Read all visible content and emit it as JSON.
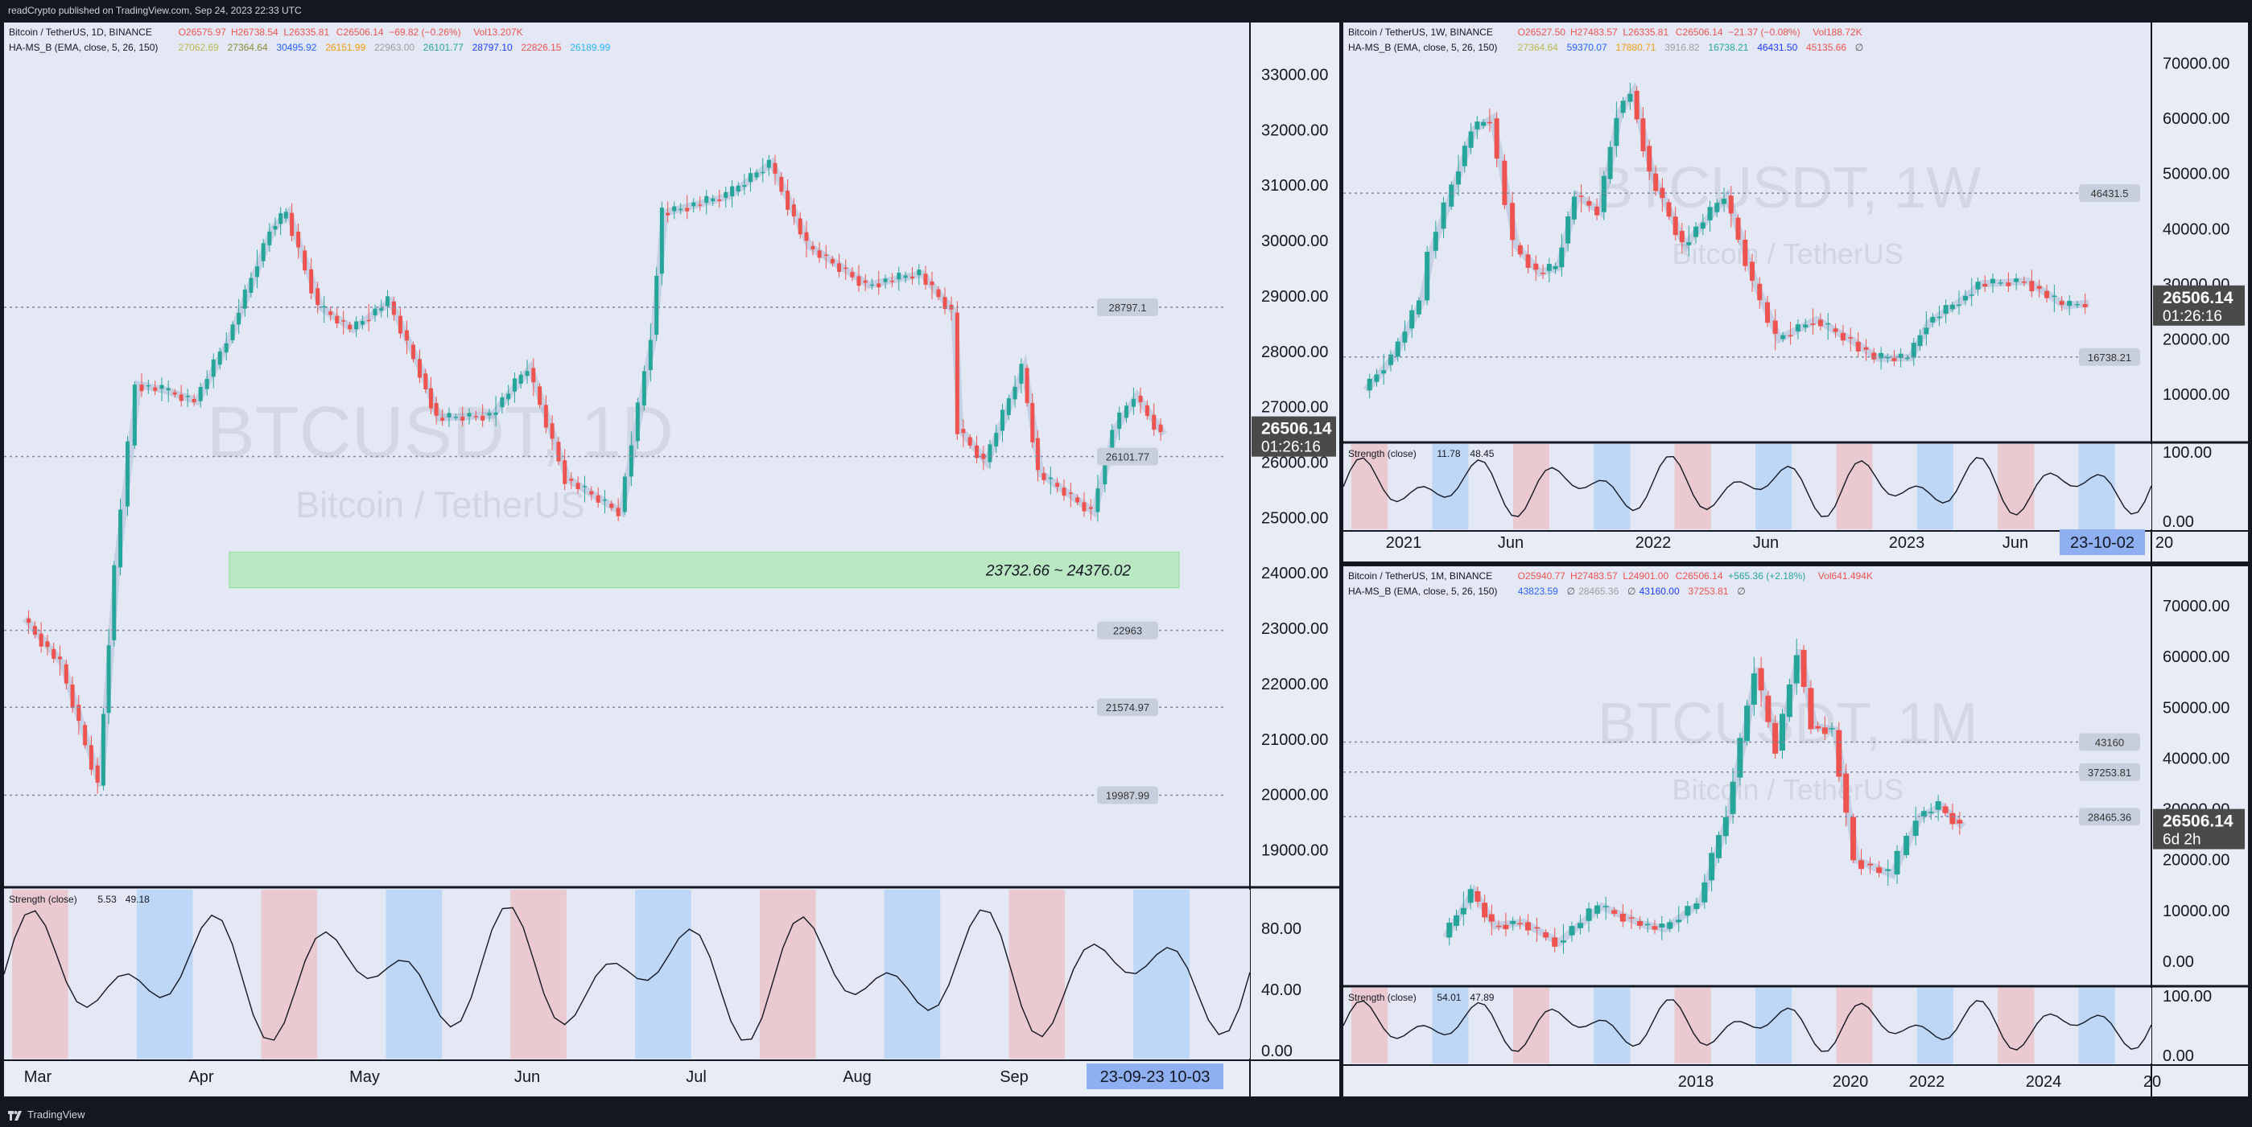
{
  "header": {
    "text": "readCrypto published on TradingView.com, Sep 24, 2023 22:33 UTC"
  },
  "footer": {
    "brand": "TradingView"
  },
  "colors": {
    "background": "#e8ecf6",
    "frame": "#131722",
    "up": "#26a69a",
    "down": "#ef5350",
    "price_tag": "#4a4a4a",
    "lines_blue": "#1e3cff",
    "fast_cloud": "#90c3f9",
    "slow_cloud": "#f2a3a3"
  },
  "chart_data": [
    {
      "type": "candlestick",
      "timeframe": "1D",
      "legend": {
        "title": "Bitcoin / TetherUS, 1D, BINANCE",
        "ohlc": [
          "O26575.97",
          "H26738.54",
          "L26335.81",
          "C26506.14",
          "−69.82 (−0.26%)",
          "Vol13.207K"
        ],
        "indicator": "HA-MS_B (EMA, close, 5, 26, 150)",
        "indicator_values": [
          "27062.69",
          "27364.64",
          "30495.92",
          "26151.99",
          "22963.00",
          "26101.77",
          "28797.10",
          "22826.15",
          "26189.99"
        ],
        "indicator_colors": [
          "#bdb94f",
          "#8b8b3a",
          "#2962ff",
          "#f39c12",
          "#9e9e9e",
          "#26a69a",
          "#1e3cff",
          "#ef5350",
          "#29b6f6"
        ]
      },
      "watermark": {
        "symbol": "BTCUSDT, 1D",
        "name": "Bitcoin / TetherUS"
      },
      "y_ticks": [
        "33000.00",
        "32000.00",
        "31000.00",
        "30000.00",
        "29000.00",
        "28000.00",
        "27000.00",
        "26000.00",
        "25000.00",
        "24000.00",
        "23000.00",
        "22000.00",
        "21000.00",
        "20000.00",
        "19000.00"
      ],
      "ylim": [
        18500,
        33500
      ],
      "x_ticks": [
        "Mar",
        "Apr",
        "May",
        "Jun",
        "Jul",
        "Aug",
        "Sep"
      ],
      "x_range_label": "23-09-23  10-03",
      "last_price": {
        "value": "26506.14",
        "countdown": "01:26:16"
      },
      "price_labels": [
        {
          "value": "28797.1",
          "y": 28797.1
        },
        {
          "value": "26101.77",
          "y": 26101.77
        },
        {
          "value": "22963",
          "y": 22963
        },
        {
          "value": "21574.97",
          "y": 21574.97
        },
        {
          "value": "19987.99",
          "y": 19987.99
        }
      ],
      "zone_label": "23732.66 ~ 24376.02",
      "zone": [
        23732.66,
        24376.02
      ],
      "close_path": [
        {
          "x": "2023-02-24",
          "y": 23180
        },
        {
          "x": "2023-03-03",
          "y": 22350
        },
        {
          "x": "2023-03-10",
          "y": 20160
        },
        {
          "x": "2023-03-13",
          "y": 24100
        },
        {
          "x": "2023-03-17",
          "y": 27400
        },
        {
          "x": "2023-03-22",
          "y": 27300
        },
        {
          "x": "2023-03-28",
          "y": 27100
        },
        {
          "x": "2023-04-03",
          "y": 28200
        },
        {
          "x": "2023-04-11",
          "y": 30200
        },
        {
          "x": "2023-04-14",
          "y": 30500
        },
        {
          "x": "2023-04-20",
          "y": 28800
        },
        {
          "x": "2023-04-26",
          "y": 28400
        },
        {
          "x": "2023-05-03",
          "y": 28900
        },
        {
          "x": "2023-05-09",
          "y": 27600
        },
        {
          "x": "2023-05-12",
          "y": 26800
        },
        {
          "x": "2023-05-22",
          "y": 26850
        },
        {
          "x": "2023-05-29",
          "y": 27700
        },
        {
          "x": "2023-06-05",
          "y": 25700
        },
        {
          "x": "2023-06-15",
          "y": 25100
        },
        {
          "x": "2023-06-21",
          "y": 28300
        },
        {
          "x": "2023-06-23",
          "y": 30500
        },
        {
          "x": "2023-07-05",
          "y": 30800
        },
        {
          "x": "2023-07-13",
          "y": 31400
        },
        {
          "x": "2023-07-20",
          "y": 29900
        },
        {
          "x": "2023-07-31",
          "y": 29200
        },
        {
          "x": "2023-08-10",
          "y": 29400
        },
        {
          "x": "2023-08-16",
          "y": 28700
        },
        {
          "x": "2023-08-17",
          "y": 26600
        },
        {
          "x": "2023-08-22",
          "y": 26000
        },
        {
          "x": "2023-08-29",
          "y": 27700
        },
        {
          "x": "2023-09-01",
          "y": 25800
        },
        {
          "x": "2023-09-11",
          "y": 25100
        },
        {
          "x": "2023-09-15",
          "y": 26600
        },
        {
          "x": "2023-09-19",
          "y": 27200
        },
        {
          "x": "2023-09-24",
          "y": 26506
        }
      ],
      "oscillator": {
        "title": "Strength (close)",
        "values": [
          "5.53",
          "49.18"
        ],
        "y_ticks": [
          "80.00",
          "40.00",
          "0.00"
        ]
      }
    },
    {
      "type": "candlestick",
      "timeframe": "1W",
      "legend": {
        "title": "Bitcoin / TetherUS, 1W, BINANCE",
        "ohlc": [
          "O26527.50",
          "H27483.57",
          "L26335.81",
          "C26506.14",
          "−21.37 (−0.08%)",
          "Vol188.72K"
        ],
        "indicator": "HA-MS_B (EMA, close, 5, 26, 150)",
        "indicator_values": [
          "27364.64",
          "59370.07",
          "17880.71",
          "3916.82",
          "16738.21",
          "46431.50",
          "45135.66",
          "∅"
        ],
        "indicator_colors": [
          "#bdb94f",
          "#2962ff",
          "#f39c12",
          "#9e9e9e",
          "#26a69a",
          "#1e3cff",
          "#ef5350",
          "#555555"
        ]
      },
      "watermark": {
        "symbol": "BTCUSDT, 1W",
        "name": "Bitcoin / TetherUS"
      },
      "y_ticks": [
        "70000.00",
        "60000.00",
        "50000.00",
        "40000.00",
        "30000.00",
        "20000.00",
        "10000.00"
      ],
      "ylim": [
        3000,
        73000
      ],
      "x_ticks": [
        "2021",
        "Jun",
        "2022",
        "Jun",
        "2023",
        "Jun",
        "20"
      ],
      "x_range_label": "23-10-02",
      "last_price": {
        "value": "26506.14",
        "countdown": "01:26:16"
      },
      "price_labels": [
        {
          "value": "46431.5",
          "y": 46431.5
        },
        {
          "value": "16738.21",
          "y": 16738.21
        }
      ],
      "close_path": [
        {
          "x": "2020-10-05",
          "y": 10700
        },
        {
          "x": "2020-11-16",
          "y": 16800
        },
        {
          "x": "2020-12-28",
          "y": 27000
        },
        {
          "x": "2021-01-11",
          "y": 36000
        },
        {
          "x": "2021-02-15",
          "y": 48000
        },
        {
          "x": "2021-03-15",
          "y": 58000
        },
        {
          "x": "2021-04-12",
          "y": 60000
        },
        {
          "x": "2021-05-17",
          "y": 37000
        },
        {
          "x": "2021-06-21",
          "y": 32000
        },
        {
          "x": "2021-07-19",
          "y": 33000
        },
        {
          "x": "2021-08-16",
          "y": 46000
        },
        {
          "x": "2021-09-20",
          "y": 43000
        },
        {
          "x": "2021-10-18",
          "y": 61000
        },
        {
          "x": "2021-11-08",
          "y": 65000
        },
        {
          "x": "2021-12-06",
          "y": 50000
        },
        {
          "x": "2022-01-24",
          "y": 37000
        },
        {
          "x": "2022-03-28",
          "y": 46000
        },
        {
          "x": "2022-05-09",
          "y": 30000
        },
        {
          "x": "2022-06-13",
          "y": 20000
        },
        {
          "x": "2022-08-08",
          "y": 23500
        },
        {
          "x": "2022-10-03",
          "y": 19500
        },
        {
          "x": "2022-11-07",
          "y": 16500
        },
        {
          "x": "2022-12-26",
          "y": 16600
        },
        {
          "x": "2023-01-23",
          "y": 23000
        },
        {
          "x": "2023-03-13",
          "y": 27000
        },
        {
          "x": "2023-04-10",
          "y": 30000
        },
        {
          "x": "2023-06-19",
          "y": 30500
        },
        {
          "x": "2023-08-14",
          "y": 26000
        },
        {
          "x": "2023-09-18",
          "y": 26506
        }
      ],
      "oscillator": {
        "title": "Strength (close)",
        "values": [
          "11.78",
          "48.45"
        ],
        "y_ticks": [
          "100.00",
          "0.00"
        ]
      }
    },
    {
      "type": "candlestick",
      "timeframe": "1M",
      "legend": {
        "title": "Bitcoin / TetherUS, 1M, BINANCE",
        "ohlc": [
          "O25940.77",
          "H27483.57",
          "L24901.00",
          "C26506.14",
          "+565.36 (+2.18%)",
          "Vol641.494K"
        ],
        "indicator": "HA-MS_B (EMA, close, 5, 26, 150)",
        "indicator_values": [
          "43823.59",
          "∅",
          "28465.36",
          "∅",
          "43160.00",
          "37253.81",
          "∅"
        ],
        "indicator_colors": [
          "#2962ff",
          "#555555",
          "#9e9e9e",
          "#555555",
          "#1e3cff",
          "#ef5350",
          "#555555"
        ]
      },
      "watermark": {
        "symbol": "BTCUSDT, 1M",
        "name": "Bitcoin / TetherUS"
      },
      "y_ticks": [
        "70000.00",
        "60000.00",
        "50000.00",
        "40000.00",
        "30000.00",
        "20000.00",
        "10000.00",
        "0.00"
      ],
      "ylim": [
        -3000,
        73000
      ],
      "x_ticks": [
        "2018",
        "2020",
        "2022",
        "2024",
        "20"
      ],
      "last_price": {
        "value": "26506.14",
        "countdown": "6d 2h"
      },
      "price_labels": [
        {
          "value": "43160",
          "y": 43160
        },
        {
          "value": "37253.81",
          "y": 37253.81
        },
        {
          "value": "28465.36",
          "y": 28465.36
        }
      ],
      "close_path": [
        {
          "x": "2017-08",
          "y": 4700
        },
        {
          "x": "2017-12",
          "y": 13800
        },
        {
          "x": "2018-03",
          "y": 7000
        },
        {
          "x": "2018-07",
          "y": 7700
        },
        {
          "x": "2018-12",
          "y": 3700
        },
        {
          "x": "2019-06",
          "y": 10800
        },
        {
          "x": "2019-12",
          "y": 7200
        },
        {
          "x": "2020-03",
          "y": 6400
        },
        {
          "x": "2020-08",
          "y": 11600
        },
        {
          "x": "2020-12",
          "y": 29000
        },
        {
          "x": "2021-04",
          "y": 57700
        },
        {
          "x": "2021-07",
          "y": 41500
        },
        {
          "x": "2021-10",
          "y": 61300
        },
        {
          "x": "2021-12",
          "y": 46300
        },
        {
          "x": "2022-03",
          "y": 45500
        },
        {
          "x": "2022-06",
          "y": 19900
        },
        {
          "x": "2022-11",
          "y": 17100
        },
        {
          "x": "2023-03",
          "y": 28500
        },
        {
          "x": "2023-06",
          "y": 30500
        },
        {
          "x": "2023-09",
          "y": 26506
        }
      ],
      "oscillator": {
        "title": "Strength (close)",
        "values": [
          "54.01",
          "47.89"
        ],
        "y_ticks": [
          "100.00",
          "0.00"
        ]
      }
    }
  ]
}
